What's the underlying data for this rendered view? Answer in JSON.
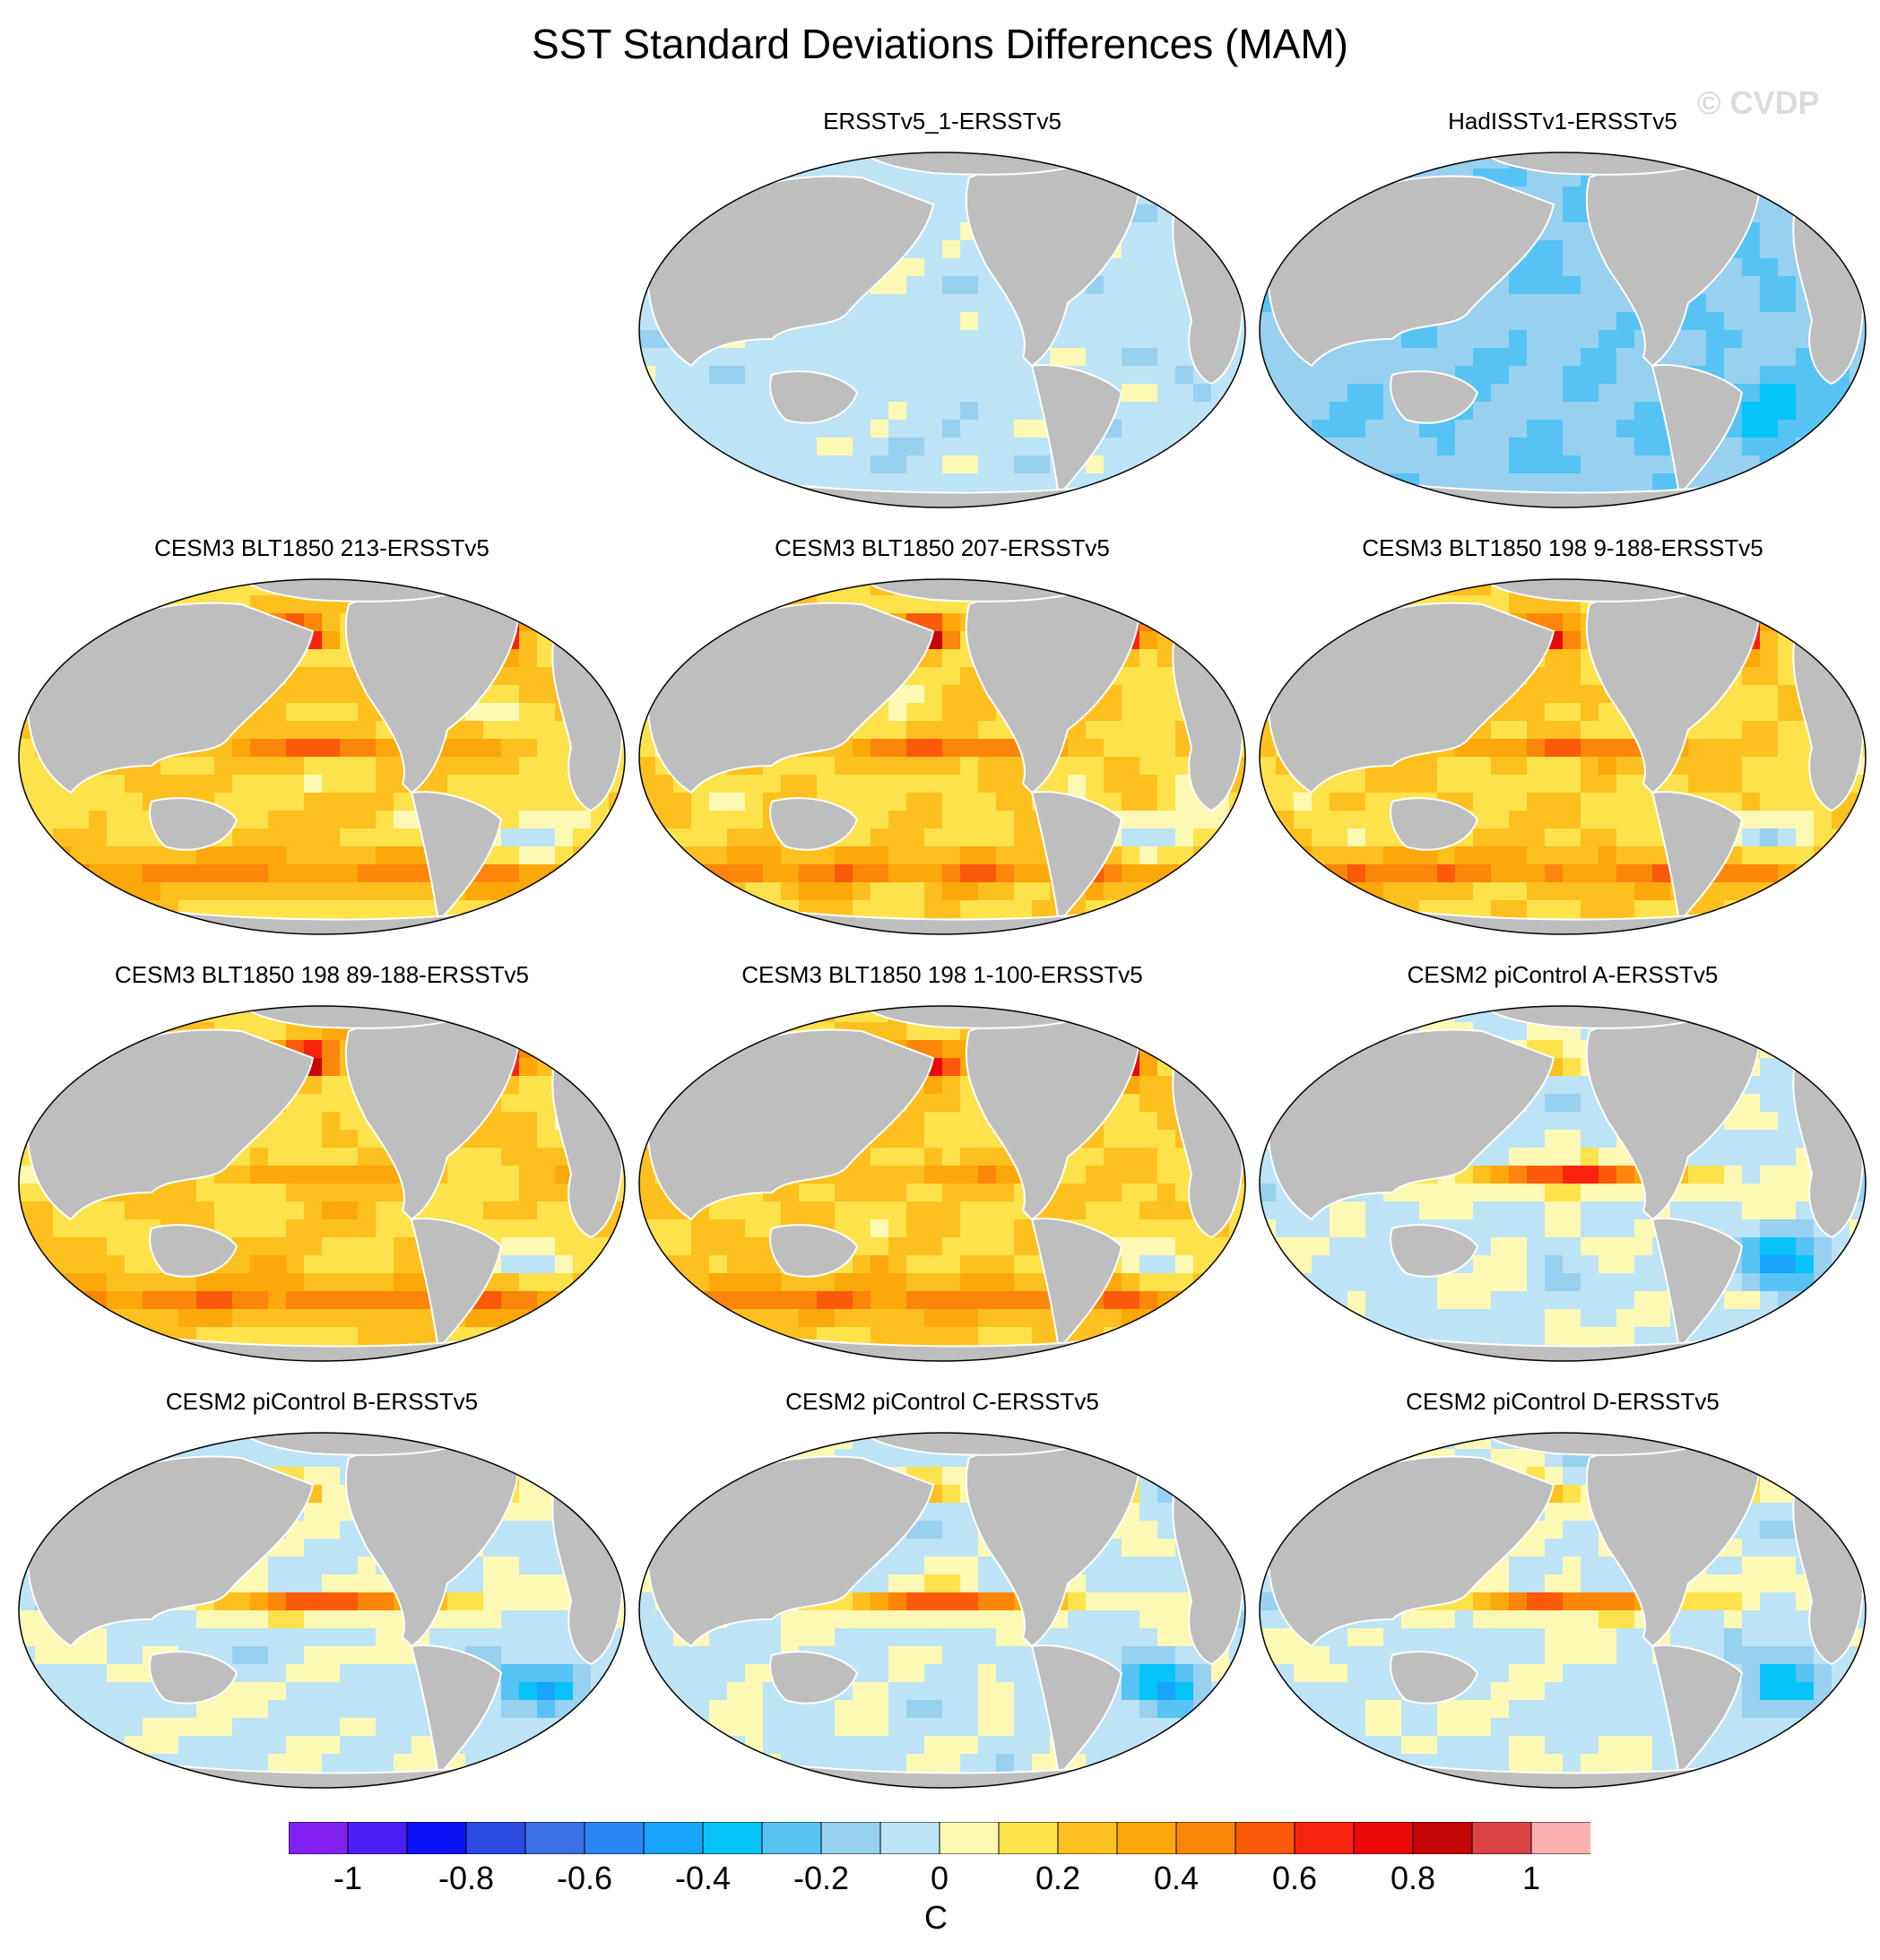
{
  "title": "SST Standard Deviations Differences (MAM)",
  "watermark": "© CVDP",
  "panels": [
    {
      "title": "ERSSTv5_1-ERSSTv5",
      "pattern": "erss"
    },
    {
      "title": "HadISSTv1-ERSSTv5",
      "pattern": "had"
    },
    {
      "title": "CESM3 BLT1850 213-ERSSTv5",
      "pattern": "cesm3"
    },
    {
      "title": "CESM3 BLT1850 207-ERSSTv5",
      "pattern": "cesm3"
    },
    {
      "title": "CESM3 BLT1850 198 9-188-ERSSTv5",
      "pattern": "cesm3"
    },
    {
      "title": "CESM3 BLT1850 198 89-188-ERSSTv5",
      "pattern": "cesm3b"
    },
    {
      "title": "CESM3 BLT1850 198 1-100-ERSSTv5",
      "pattern": "cesm3b"
    },
    {
      "title": "CESM2 piControl A-ERSSTv5",
      "pattern": "cesm2"
    },
    {
      "title": "CESM2 piControl B-ERSSTv5",
      "pattern": "cesm2"
    },
    {
      "title": "CESM2 piControl C-ERSSTv5",
      "pattern": "cesm2"
    },
    {
      "title": "CESM2 piControl D-ERSSTv5",
      "pattern": "cesm2"
    }
  ],
  "colorbar": {
    "unit": "C",
    "tick_labels": [
      "-1",
      "-0.8",
      "-0.6",
      "-0.4",
      "-0.2",
      "0",
      "0.2",
      "0.4",
      "0.6",
      "0.8",
      "1"
    ],
    "tick_values": [
      -1,
      -0.8,
      -0.6,
      -0.4,
      -0.2,
      0,
      0.2,
      0.4,
      0.6,
      0.8,
      1
    ],
    "min": -1.1,
    "max": 1.1,
    "colors": [
      "#8122f2",
      "#4a1ef5",
      "#0a12f5",
      "#2b4ae0",
      "#3a6fe6",
      "#2d86f5",
      "#17a4fa",
      "#06c3f9",
      "#56c3f4",
      "#98d0ef",
      "#bde3f6",
      "#fdf9b4",
      "#fde24c",
      "#fdc01f",
      "#fca70a",
      "#fb860a",
      "#fa5a0a",
      "#f8230e",
      "#e90909",
      "#c50606",
      "#db4447",
      "#fbb0b0"
    ]
  },
  "land_color": "#bebebe"
}
